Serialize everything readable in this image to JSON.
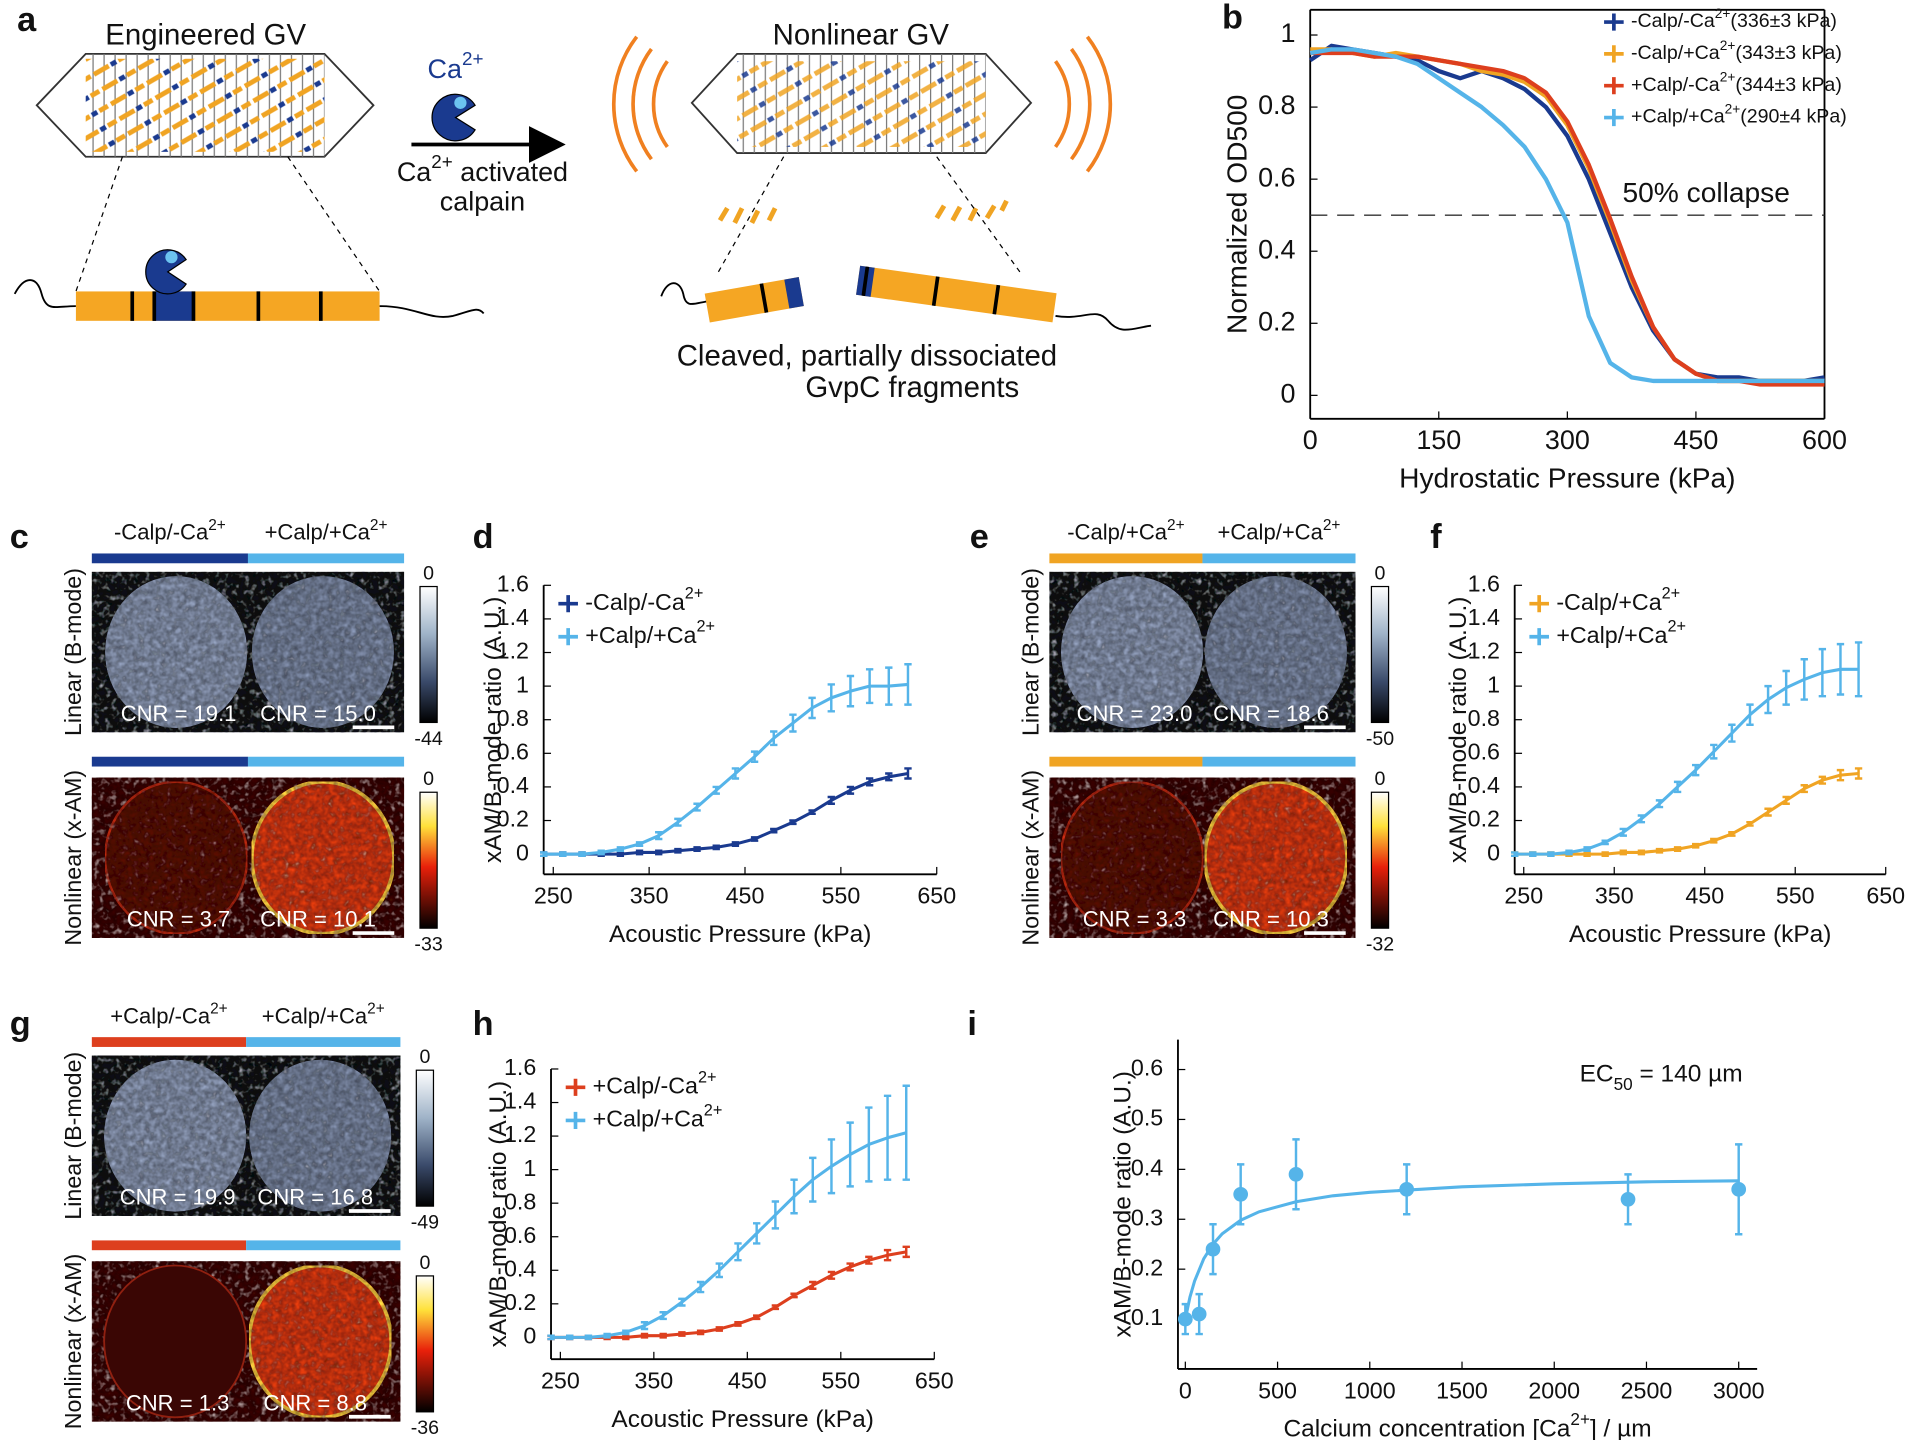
{
  "panel_labels": [
    "a",
    "b",
    "c",
    "d",
    "e",
    "f",
    "g",
    "h",
    "i"
  ],
  "diagram": {
    "engineered": "Engineered GV",
    "ion": "Ca2+",
    "arrow_label": [
      "Ca2+ activated",
      "calpain"
    ],
    "nonlinear": "Nonlinear GV",
    "fragments": [
      "Cleaved, partially dissociated",
      "GvpC fragments"
    ]
  },
  "images": [
    {
      "groups": [
        "-Calp/-Ca2+",
        "+Calp/+Ca2+"
      ],
      "group_colors": [
        "#1a3a8f",
        "#55b4e9"
      ],
      "rows": [
        {
          "label": "Linear (B-mode)",
          "cnr": [
            "CNR = 19.1",
            "CNR = 15.0"
          ],
          "colorbar": [
            0,
            -44
          ]
        },
        {
          "label": "Nonlinear (x-AM)",
          "cnr": [
            "CNR = 3.7",
            "CNR = 10.1"
          ],
          "colorbar": [
            0,
            -33
          ]
        }
      ]
    },
    {
      "groups": [
        "-Calp/+Ca2+",
        "+Calp/+Ca2+"
      ],
      "group_colors": [
        "#f0a423",
        "#55b4e9"
      ],
      "rows": [
        {
          "label": "Linear (B-mode)",
          "cnr": [
            "CNR = 23.0",
            "CNR = 18.6"
          ],
          "colorbar": [
            0,
            -50
          ]
        },
        {
          "label": "Nonlinear (x-AM)",
          "cnr": [
            "CNR = 3.3",
            "CNR = 10.3"
          ],
          "colorbar": [
            0,
            -32
          ]
        }
      ]
    },
    {
      "groups": [
        "+Calp/-Ca2+",
        "+Calp/+Ca2+"
      ],
      "group_colors": [
        "#dd3f1e",
        "#55b4e9"
      ],
      "rows": [
        {
          "label": "Linear (B-mode)",
          "cnr": [
            "CNR = 19.9",
            "CNR = 16.8"
          ],
          "colorbar": [
            0,
            -49
          ]
        },
        {
          "label": "Nonlinear (x-AM)",
          "cnr": [
            "CNR = 1.3",
            "CNR = 8.8"
          ],
          "colorbar": [
            0,
            -36
          ]
        }
      ]
    }
  ],
  "chart_data": [
    {
      "type": "line",
      "xlabel": "Hydrostatic Pressure (kPa)",
      "ylabel": "Normalized OD500",
      "box": true,
      "legend": "upper right",
      "x": [
        0,
        25,
        50,
        75,
        100,
        125,
        150,
        175,
        200,
        225,
        250,
        275,
        300,
        325,
        350,
        375,
        400,
        425,
        450,
        475,
        500,
        525,
        550,
        575,
        600
      ],
      "xlim": [
        0,
        600
      ],
      "xticks": [
        0,
        150,
        300,
        450,
        600
      ],
      "ylim": [
        -0.065,
        1.07
      ],
      "yticks": [
        0,
        0.2,
        0.4,
        0.6,
        0.8,
        1
      ],
      "reference_line": {
        "value": 0.5,
        "label": "50% collapse"
      },
      "series": [
        {
          "name": "-Calp/-Ca2+(336±3 kPa)",
          "color": "#1a3a8f",
          "values": [
            0.93,
            0.97,
            0.96,
            0.95,
            0.94,
            0.93,
            0.9,
            0.88,
            0.9,
            0.88,
            0.85,
            0.8,
            0.72,
            0.6,
            0.45,
            0.3,
            0.18,
            0.1,
            0.06,
            0.05,
            0.05,
            0.04,
            0.04,
            0.04,
            0.05
          ]
        },
        {
          "name": "-Calp/+Ca2+(343±3 kPa)",
          "color": "#f0a423",
          "values": [
            0.96,
            0.96,
            0.95,
            0.94,
            0.95,
            0.94,
            0.93,
            0.92,
            0.9,
            0.89,
            0.87,
            0.83,
            0.75,
            0.63,
            0.48,
            0.32,
            0.19,
            0.1,
            0.06,
            0.04,
            0.04,
            0.04,
            0.04,
            0.04,
            0.04
          ]
        },
        {
          "name": "+Calp/-Ca2+(344±3 kPa)",
          "color": "#dd3f1e",
          "values": [
            0.95,
            0.95,
            0.95,
            0.94,
            0.94,
            0.94,
            0.93,
            0.92,
            0.91,
            0.9,
            0.88,
            0.84,
            0.76,
            0.64,
            0.49,
            0.33,
            0.19,
            0.1,
            0.06,
            0.04,
            0.04,
            0.03,
            0.03,
            0.03,
            0.03
          ]
        },
        {
          "name": "+Calp/+Ca2+(290±4 kPa)",
          "color": "#55b4e9",
          "values": [
            0.95,
            0.96,
            0.96,
            0.95,
            0.94,
            0.92,
            0.88,
            0.84,
            0.8,
            0.75,
            0.69,
            0.6,
            0.48,
            0.22,
            0.09,
            0.05,
            0.04,
            0.04,
            0.04,
            0.04,
            0.04,
            0.04,
            0.04,
            0.04,
            0.04
          ]
        }
      ]
    },
    {
      "type": "line",
      "xlabel": "Acoustic Pressure (kPa)",
      "ylabel": "xAM/B-mode ratio (A.U.)",
      "legend": "upper left",
      "x": [
        240,
        260,
        280,
        300,
        320,
        340,
        360,
        380,
        400,
        420,
        440,
        460,
        480,
        500,
        520,
        540,
        560,
        580,
        600,
        620
      ],
      "xlim": [
        240,
        650
      ],
      "xticks": [
        250,
        350,
        450,
        550,
        650
      ],
      "ylim": [
        -0.12,
        1.6
      ],
      "yticks": [
        0,
        0.2,
        0.4,
        0.6,
        0.8,
        1,
        1.2,
        1.4,
        1.6
      ],
      "series": [
        {
          "name": "-Calp/-Ca2+",
          "color": "#1a3a8f",
          "values": [
            0,
            0,
            0,
            0,
            0,
            0.01,
            0.01,
            0.02,
            0.03,
            0.04,
            0.06,
            0.09,
            0.14,
            0.19,
            0.25,
            0.32,
            0.38,
            0.43,
            0.46,
            0.48
          ],
          "errors": [
            0.01,
            0.01,
            0.01,
            0.01,
            0.01,
            0.01,
            0.01,
            0.01,
            0.01,
            0.01,
            0.01,
            0.01,
            0.01,
            0.01,
            0.01,
            0.02,
            0.02,
            0.02,
            0.02,
            0.03
          ]
        },
        {
          "name": "+Calp/+Ca2+",
          "color": "#55b4e9",
          "values": [
            0,
            0,
            0,
            0.01,
            0.03,
            0.06,
            0.11,
            0.19,
            0.28,
            0.38,
            0.48,
            0.58,
            0.69,
            0.78,
            0.87,
            0.93,
            0.97,
            1,
            1,
            1.01
          ],
          "errors": [
            0.01,
            0.01,
            0.01,
            0.01,
            0.01,
            0.01,
            0.02,
            0.02,
            0.02,
            0.02,
            0.03,
            0.03,
            0.04,
            0.05,
            0.06,
            0.08,
            0.09,
            0.1,
            0.11,
            0.12
          ]
        }
      ]
    },
    {
      "type": "line",
      "xlabel": "Acoustic Pressure (kPa)",
      "ylabel": "xAM/B-mode ratio (A.U.)",
      "legend": "upper left",
      "x": [
        240,
        260,
        280,
        300,
        320,
        340,
        360,
        380,
        400,
        420,
        440,
        460,
        480,
        500,
        520,
        540,
        560,
        580,
        600,
        620
      ],
      "xlim": [
        240,
        650
      ],
      "xticks": [
        250,
        350,
        450,
        550,
        650
      ],
      "ylim": [
        -0.12,
        1.6
      ],
      "yticks": [
        0,
        0.2,
        0.4,
        0.6,
        0.8,
        1,
        1.2,
        1.4,
        1.6
      ],
      "series": [
        {
          "name": "-Calp/+Ca2+",
          "color": "#f0a423",
          "values": [
            0,
            0,
            0,
            0,
            0,
            0,
            0.01,
            0.01,
            0.02,
            0.03,
            0.05,
            0.08,
            0.12,
            0.18,
            0.25,
            0.32,
            0.39,
            0.44,
            0.47,
            0.48
          ],
          "errors": [
            0.01,
            0.01,
            0.01,
            0.01,
            0.01,
            0.01,
            0.01,
            0.01,
            0.01,
            0.01,
            0.01,
            0.01,
            0.01,
            0.01,
            0.02,
            0.02,
            0.02,
            0.02,
            0.03,
            0.03
          ]
        },
        {
          "name": "+Calp/+Ca2+",
          "color": "#55b4e9",
          "values": [
            0,
            0,
            0,
            0.01,
            0.03,
            0.07,
            0.13,
            0.21,
            0.3,
            0.4,
            0.5,
            0.61,
            0.72,
            0.83,
            0.92,
            0.99,
            1.04,
            1.08,
            1.1,
            1.1
          ],
          "errors": [
            0.01,
            0.01,
            0.01,
            0.01,
            0.01,
            0.01,
            0.02,
            0.02,
            0.02,
            0.03,
            0.03,
            0.04,
            0.05,
            0.06,
            0.08,
            0.1,
            0.12,
            0.14,
            0.15,
            0.16
          ]
        }
      ]
    },
    {
      "type": "line",
      "xlabel": "Acoustic Pressure (kPa)",
      "ylabel": "xAM/B-mode ratio (A.U.)",
      "legend": "upper left",
      "x": [
        240,
        260,
        280,
        300,
        320,
        340,
        360,
        380,
        400,
        420,
        440,
        460,
        480,
        500,
        520,
        540,
        560,
        580,
        600,
        620
      ],
      "xlim": [
        240,
        650
      ],
      "xticks": [
        250,
        350,
        450,
        550,
        650
      ],
      "ylim": [
        -0.13,
        1.6
      ],
      "yticks": [
        0,
        0.2,
        0.4,
        0.6,
        0.8,
        1,
        1.2,
        1.4,
        1.6
      ],
      "series": [
        {
          "name": "+Calp/-Ca2+",
          "color": "#dd3f1e",
          "values": [
            0,
            0,
            0,
            0,
            0,
            0.01,
            0.01,
            0.02,
            0.03,
            0.05,
            0.08,
            0.12,
            0.18,
            0.25,
            0.31,
            0.37,
            0.42,
            0.46,
            0.49,
            0.51
          ],
          "errors": [
            0.01,
            0.01,
            0.01,
            0.01,
            0.01,
            0.01,
            0.01,
            0.01,
            0.01,
            0.01,
            0.01,
            0.01,
            0.01,
            0.01,
            0.02,
            0.02,
            0.02,
            0.02,
            0.03,
            0.03
          ]
        },
        {
          "name": "+Calp/+Ca2+",
          "color": "#55b4e9",
          "values": [
            0,
            0,
            0,
            0.01,
            0.03,
            0.07,
            0.13,
            0.21,
            0.3,
            0.4,
            0.51,
            0.62,
            0.73,
            0.84,
            0.94,
            1.02,
            1.09,
            1.15,
            1.19,
            1.22
          ],
          "errors": [
            0.01,
            0.01,
            0.01,
            0.01,
            0.01,
            0.02,
            0.02,
            0.02,
            0.03,
            0.04,
            0.05,
            0.06,
            0.08,
            0.1,
            0.13,
            0.16,
            0.19,
            0.22,
            0.25,
            0.28
          ]
        }
      ]
    },
    {
      "type": "scatter",
      "xlabel": "Calcium concentration [Ca2+] / µm",
      "ylabel": "xAM/B-mode ratio (A.U.)",
      "annotation": "EC50 = 140 µm",
      "xlim": [
        -40,
        3100
      ],
      "xticks": [
        0,
        500,
        1000,
        1500,
        2000,
        2500,
        3000
      ],
      "ylim": [
        0,
        0.66
      ],
      "yticks": [
        0.1,
        0.2,
        0.3,
        0.4,
        0.5,
        0.6
      ],
      "series": [
        {
          "color": "#55b4e9",
          "x": [
            0,
            75,
            150,
            300,
            600,
            1200,
            2400,
            3000
          ],
          "values": [
            0.1,
            0.11,
            0.24,
            0.35,
            0.39,
            0.36,
            0.34,
            0.36
          ],
          "errors": [
            0.03,
            0.04,
            0.05,
            0.06,
            0.07,
            0.05,
            0.05,
            0.09
          ]
        }
      ],
      "fit": {
        "x": [
          0,
          25,
          50,
          100,
          150,
          200,
          300,
          400,
          600,
          800,
          1000,
          1500,
          2000,
          2500,
          3000
        ],
        "values": [
          0.1,
          0.144,
          0.176,
          0.221,
          0.25,
          0.271,
          0.298,
          0.315,
          0.335,
          0.347,
          0.354,
          0.365,
          0.371,
          0.375,
          0.377
        ]
      }
    }
  ]
}
